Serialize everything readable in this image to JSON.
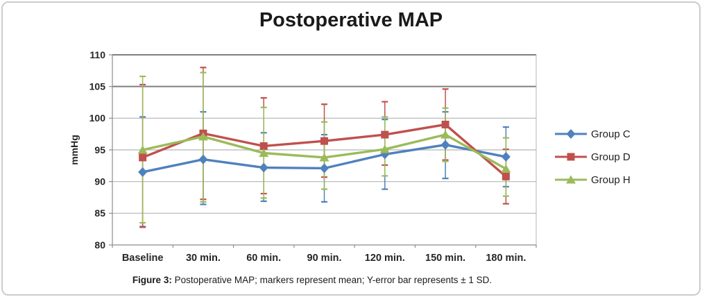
{
  "figure": {
    "title": "Postoperative MAP",
    "caption_label": "Figure 3:",
    "caption_text": " Postoperative MAP; markers represent mean; Y-error bar represents ± 1 SD."
  },
  "chart_data": {
    "type": "line",
    "title": "Postoperative MAP",
    "xlabel": "",
    "ylabel": "mmHg",
    "ylim": [
      80,
      110
    ],
    "yticks": [
      110,
      105,
      100,
      95,
      90,
      85,
      80
    ],
    "categories": [
      "Baseline",
      "30 min.",
      "60 min.",
      "90 min.",
      "120 min.",
      "150 min.",
      "180 min."
    ],
    "grid": "horizontal",
    "legend_position": "right",
    "error_bars": "± 1 SD",
    "series": [
      {
        "name": "Group C",
        "color": "#4F81BD",
        "marker": "diamond",
        "values": [
          91.5,
          93.5,
          92.2,
          92.1,
          94.3,
          95.8,
          93.9
        ],
        "err_top": [
          100.2,
          101.0,
          97.7,
          97.4,
          99.8,
          101.0,
          98.6
        ],
        "err_bottom": [
          82.9,
          86.4,
          86.9,
          86.8,
          88.8,
          90.5,
          89.2
        ]
      },
      {
        "name": "Group D",
        "color": "#C0504D",
        "marker": "square",
        "values": [
          93.8,
          97.6,
          95.6,
          96.4,
          97.4,
          99.0,
          90.8
        ],
        "err_top": [
          105.3,
          108.0,
          103.2,
          102.2,
          102.6,
          104.6,
          95.1
        ],
        "err_bottom": [
          82.8,
          87.2,
          88.1,
          90.7,
          92.6,
          93.4,
          86.5
        ]
      },
      {
        "name": "Group H",
        "color": "#9BBB59",
        "marker": "triangle",
        "values": [
          95.0,
          97.1,
          94.5,
          93.8,
          95.1,
          97.4,
          92.0
        ],
        "err_top": [
          106.6,
          107.2,
          101.7,
          99.4,
          100.2,
          101.6,
          96.9
        ],
        "err_bottom": [
          83.5,
          86.8,
          87.4,
          88.8,
          90.9,
          93.2,
          87.7
        ]
      }
    ]
  }
}
